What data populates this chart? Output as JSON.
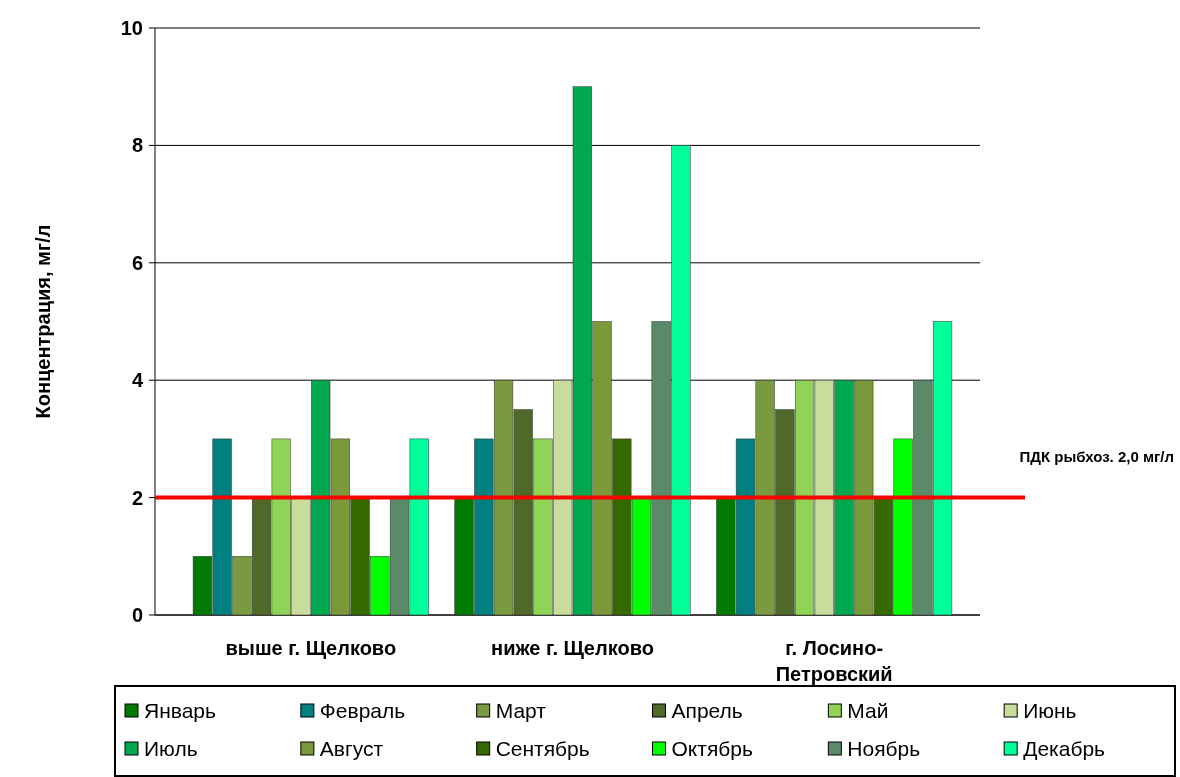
{
  "chart_data": {
    "type": "bar",
    "ylabel": "Концентрация, мг/л",
    "categories": [
      "выше г. Щелково",
      "ниже г. Щелково",
      "г. Лосино-Петровский"
    ],
    "series": [
      {
        "name": "Январь",
        "color": "#007a00",
        "values": [
          1,
          2,
          2
        ]
      },
      {
        "name": "Февраль",
        "color": "#008080",
        "values": [
          3,
          3,
          3
        ]
      },
      {
        "name": "Март",
        "color": "#7a9a40",
        "values": [
          1,
          4,
          4
        ]
      },
      {
        "name": "Апрель",
        "color": "#4f6a28",
        "values": [
          2,
          3.5,
          3.5
        ]
      },
      {
        "name": "Май",
        "color": "#8fd455",
        "values": [
          3,
          3,
          4
        ]
      },
      {
        "name": "Июнь",
        "color": "#c8dc9c",
        "values": [
          2,
          4,
          4
        ]
      },
      {
        "name": "Июль",
        "color": "#00a850",
        "values": [
          4,
          9,
          4
        ]
      },
      {
        "name": "Август",
        "color": "#7a9a3a",
        "values": [
          3,
          5,
          4
        ]
      },
      {
        "name": "Сентябрь",
        "color": "#356a00",
        "values": [
          2,
          3,
          2
        ]
      },
      {
        "name": "Октябрь",
        "color": "#00ff00",
        "values": [
          1,
          2,
          3
        ]
      },
      {
        "name": "Ноябрь",
        "color": "#5a8a68",
        "values": [
          2,
          5,
          4
        ]
      },
      {
        "name": "Декабрь",
        "color": "#00ff99",
        "values": [
          3,
          8,
          5
        ]
      }
    ],
    "ylim": [
      0,
      10
    ],
    "yticks": [
      0,
      2,
      4,
      6,
      8,
      10
    ],
    "grid": "y",
    "legend": "bottom",
    "ref_lines": [
      {
        "axis": "y",
        "value": 2,
        "label": "ПДК рыбхоз. 2,0 мг/л",
        "color": "#ff0000"
      }
    ]
  }
}
